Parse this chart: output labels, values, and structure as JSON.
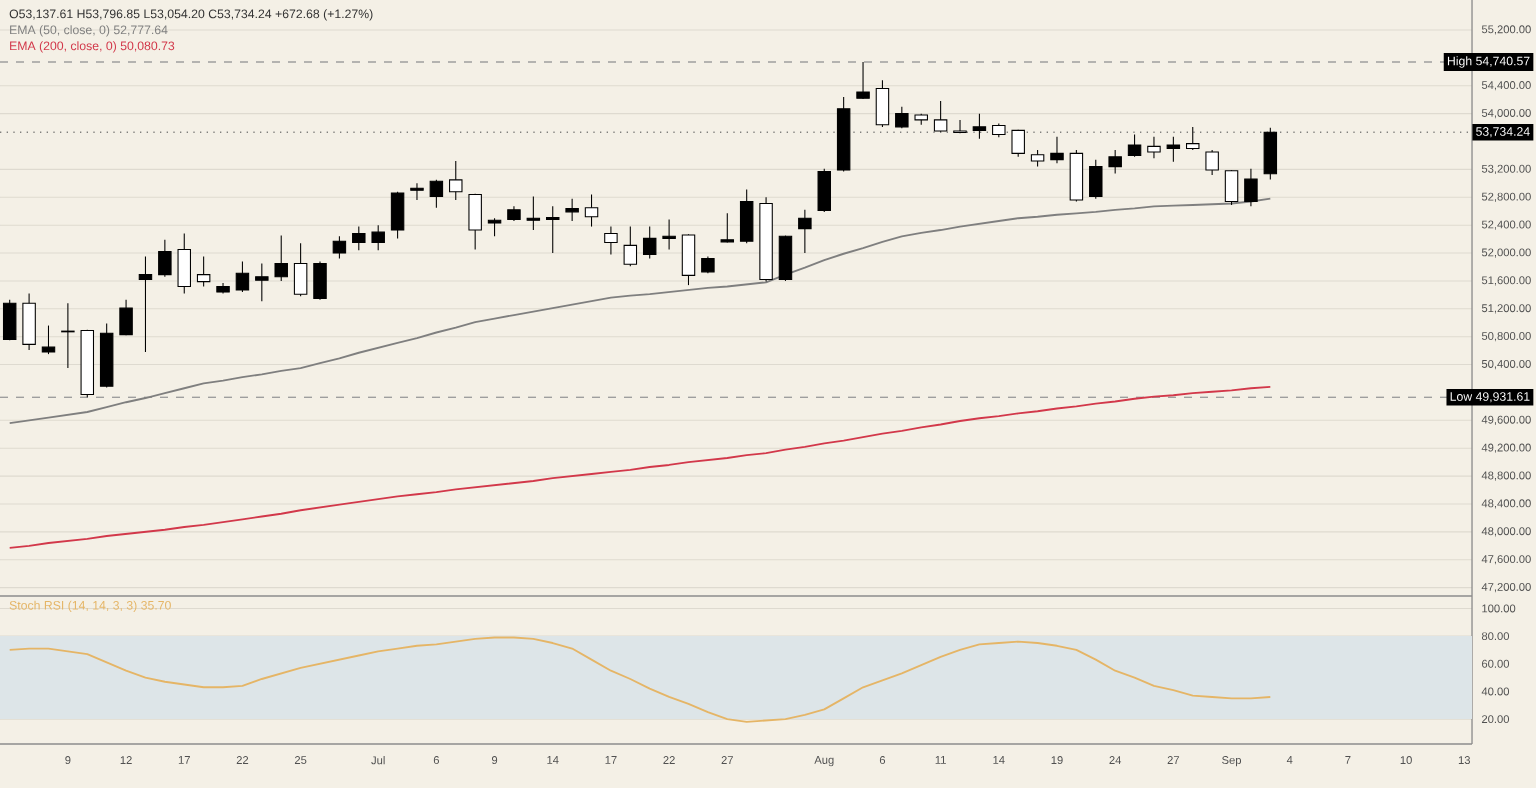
{
  "chart_data": [
    {
      "type": "candlestick",
      "title": "O53,137.61 H53,796.85 L53,054.20 C53,734.24 +672.68 (+1.27%)",
      "categories": [
        null,
        null,
        null,
        null,
        null,
        null,
        null,
        null,
        null,
        null,
        null,
        null,
        null,
        null,
        null,
        null,
        null,
        null,
        null,
        null,
        null,
        null,
        null,
        null,
        null,
        null,
        null,
        null,
        null,
        null,
        null,
        null,
        null,
        null,
        null,
        null,
        null,
        null,
        null,
        null,
        null,
        null,
        null,
        null,
        null,
        null,
        null,
        null,
        null,
        null,
        null,
        null,
        null,
        null,
        null,
        null,
        null,
        null,
        null,
        null,
        null,
        null,
        null,
        null,
        null,
        null,
        null,
        null,
        null,
        null,
        null,
        null,
        null,
        null,
        null,
        null
      ],
      "ohlc": [
        [
          50760,
          51330,
          50750,
          51280
        ],
        [
          51280,
          51420,
          50610,
          50690
        ],
        [
          50580,
          50960,
          50550,
          50650
        ],
        [
          50880,
          51280,
          50350,
          50870
        ],
        [
          50890,
          50900,
          49931.61,
          49970
        ],
        [
          50090,
          50990,
          50070,
          50850
        ],
        [
          50830,
          51330,
          50820,
          51210
        ],
        [
          51620,
          51950,
          50580,
          51690
        ],
        [
          51690,
          52190,
          51660,
          52020
        ],
        [
          52050,
          52280,
          51420,
          51520
        ],
        [
          51690,
          51950,
          51520,
          51590
        ],
        [
          51440,
          51570,
          51420,
          51520
        ],
        [
          51470,
          51880,
          51440,
          51710
        ],
        [
          51610,
          51850,
          51310,
          51660
        ],
        [
          51660,
          52250,
          51600,
          51850
        ],
        [
          51850,
          52140,
          51380,
          51410
        ],
        [
          51350,
          51880,
          51330,
          51850
        ],
        [
          52000,
          52240,
          51920,
          52170
        ],
        [
          52150,
          52380,
          52040,
          52280
        ],
        [
          52150,
          52400,
          52040,
          52300
        ],
        [
          52330,
          52880,
          52210,
          52860
        ],
        [
          52900,
          53000,
          52760,
          52930
        ],
        [
          52810,
          53050,
          52650,
          53030
        ],
        [
          53050,
          53320,
          52760,
          52880
        ],
        [
          52840,
          52850,
          52050,
          52330
        ],
        [
          52430,
          52500,
          52240,
          52470
        ],
        [
          52480,
          52670,
          52460,
          52620
        ],
        [
          52470,
          52810,
          52330,
          52500
        ],
        [
          52480,
          52670,
          52000,
          52510
        ],
        [
          52590,
          52780,
          52460,
          52640
        ],
        [
          52650,
          52840,
          52380,
          52520
        ],
        [
          52280,
          52380,
          51980,
          52150
        ],
        [
          52110,
          52380,
          51810,
          51840
        ],
        [
          51980,
          52380,
          51920,
          52210
        ],
        [
          52210,
          52480,
          52050,
          52240
        ],
        [
          52260,
          52270,
          51540,
          51680
        ],
        [
          51730,
          51950,
          51710,
          51920
        ],
        [
          52160,
          52570,
          52150,
          52190
        ],
        [
          52170,
          52910,
          52140,
          52740
        ],
        [
          52710,
          52800,
          51590,
          51620
        ],
        [
          51620,
          52250,
          51600,
          52240
        ],
        [
          52350,
          52620,
          52000,
          52500
        ],
        [
          52610,
          53210,
          52590,
          53170
        ],
        [
          53190,
          54240,
          53170,
          54070
        ],
        [
          54220,
          54740.57,
          54210,
          54310
        ],
        [
          54360,
          54480,
          53810,
          53840
        ],
        [
          53810,
          54100,
          53790,
          54000
        ],
        [
          53980,
          54000,
          53840,
          53910
        ],
        [
          53910,
          54180,
          53740,
          53750
        ],
        [
          53750,
          53910,
          53720,
          53730
        ],
        [
          53760,
          54000,
          53640,
          53810
        ],
        [
          53830,
          53860,
          53660,
          53700
        ],
        [
          53760,
          53770,
          53380,
          53430
        ],
        [
          53410,
          53480,
          53240,
          53320
        ],
        [
          53340,
          53670,
          53290,
          53430
        ],
        [
          53430,
          53480,
          52740,
          52760
        ],
        [
          52810,
          53340,
          52780,
          53240
        ],
        [
          53240,
          53480,
          53140,
          53380
        ],
        [
          53400,
          53700,
          53380,
          53550
        ],
        [
          53530,
          53670,
          53360,
          53450
        ],
        [
          53500,
          53670,
          53310,
          53550
        ],
        [
          53570,
          53810,
          53480,
          53500
        ],
        [
          53450,
          53480,
          53120,
          53190
        ],
        [
          53180,
          53190,
          52690,
          52740
        ],
        [
          52740,
          53210,
          52670,
          53061.56
        ],
        [
          53137.61,
          53796.85,
          53054.2,
          53734.24
        ],
        null,
        null,
        null,
        null,
        null,
        null,
        null,
        null,
        null,
        null
      ],
      "series": [
        {
          "name": "EMA (50, close, 0) 52,777.64",
          "type": "line",
          "color": "#7f7f7f",
          "values": [
            49560,
            49600,
            49640,
            49680,
            49720,
            49790,
            49860,
            49920,
            49990,
            50060,
            50130,
            50170,
            50220,
            50260,
            50310,
            50350,
            50420,
            50490,
            50570,
            50640,
            50710,
            50780,
            50860,
            50930,
            51010,
            51060,
            51110,
            51160,
            51210,
            51260,
            51310,
            51360,
            51390,
            51410,
            51440,
            51470,
            51500,
            51520,
            51550,
            51580,
            51690,
            51790,
            51900,
            51990,
            52070,
            52160,
            52240,
            52290,
            52330,
            52380,
            52420,
            52460,
            52500,
            52520,
            52550,
            52570,
            52590,
            52620,
            52640,
            52670,
            52680,
            52690,
            52700,
            52710,
            52740,
            52780,
            null,
            null,
            null,
            null,
            null,
            null,
            null,
            null,
            null,
            null
          ]
        },
        {
          "name": "EMA (200, close, 0) 50,080.73",
          "type": "line",
          "color": "#d2384a",
          "values": [
            47770,
            47800,
            47840,
            47870,
            47900,
            47940,
            47970,
            48000,
            48030,
            48070,
            48100,
            48140,
            48180,
            48220,
            48260,
            48310,
            48350,
            48390,
            48430,
            48470,
            48510,
            48540,
            48570,
            48610,
            48640,
            48670,
            48700,
            48730,
            48770,
            48800,
            48830,
            48860,
            48890,
            48930,
            48960,
            49000,
            49030,
            49060,
            49100,
            49130,
            49180,
            49220,
            49270,
            49310,
            49360,
            49410,
            49450,
            49500,
            49540,
            49590,
            49630,
            49660,
            49700,
            49730,
            49770,
            49800,
            49840,
            49870,
            49910,
            49940,
            49960,
            49990,
            50010,
            50030,
            50060,
            50080,
            null,
            null,
            null,
            null,
            null,
            null,
            null,
            null,
            null,
            null
          ]
        }
      ],
      "ylim": [
        47080,
        55630
      ],
      "yticks": [
        {
          "value": 55200,
          "label": "55,200.00"
        },
        {
          "value": 54400,
          "label": "54,400.00"
        },
        {
          "value": 54000,
          "label": "54,000.00"
        },
        {
          "value": 53200,
          "label": "53,200.00"
        },
        {
          "value": 52800,
          "label": "52,800.00"
        },
        {
          "value": 52400,
          "label": "52,400.00"
        },
        {
          "value": 52000,
          "label": "52,000.00"
        },
        {
          "value": 51600,
          "label": "51,600.00"
        },
        {
          "value": 51200,
          "label": "51,200.00"
        },
        {
          "value": 50800,
          "label": "50,800.00"
        },
        {
          "value": 50400,
          "label": "50,400.00"
        },
        {
          "value": 49600,
          "label": "49,600.00"
        },
        {
          "value": 49200,
          "label": "49,200.00"
        },
        {
          "value": 48800,
          "label": "48,800.00"
        },
        {
          "value": 48400,
          "label": "48,400.00"
        },
        {
          "value": 48000,
          "label": "48,000.00"
        },
        {
          "value": 47600,
          "label": "47,600.00"
        },
        {
          "value": 47200,
          "label": "47,200.00"
        }
      ],
      "ref_lines": [
        {
          "axis": "y",
          "value": 54740.57,
          "label": "High 54,740.57",
          "line_style": "dashed",
          "color": "#9e9e9e"
        },
        {
          "axis": "y",
          "value": 53734.24,
          "label": "53,734.24",
          "line_style": "dotted",
          "color": "#5a5a5a"
        },
        {
          "axis": "y",
          "value": 49931.61,
          "label": "Low 49,931.61",
          "line_style": "dashed",
          "color": "#9e9e9e"
        }
      ],
      "tick_labels": "y",
      "grid": "y",
      "legend": "top left"
    },
    {
      "type": "line",
      "categories": [
        null,
        null,
        null,
        "9",
        null,
        null,
        "12",
        null,
        null,
        "17",
        null,
        null,
        "22",
        null,
        null,
        "25",
        null,
        null,
        null,
        "Jul",
        null,
        null,
        "6",
        null,
        null,
        "9",
        null,
        null,
        "14",
        null,
        null,
        "17",
        null,
        null,
        "22",
        null,
        null,
        "27",
        null,
        null,
        null,
        null,
        "Aug",
        null,
        null,
        "6",
        null,
        null,
        "11",
        null,
        null,
        "14",
        null,
        null,
        "19",
        null,
        null,
        "24",
        null,
        null,
        "27",
        null,
        null,
        "Sep",
        null,
        null,
        "4",
        null,
        null,
        "7",
        null,
        null,
        "10",
        null,
        null,
        "13"
      ],
      "series": [
        {
          "name": "Stoch RSI (14, 14, 3, 3) 35.70",
          "color": "#e5b566",
          "values": [
            70,
            71,
            71,
            69,
            67,
            61,
            55,
            50,
            47,
            45,
            43,
            43,
            44,
            49,
            53,
            57,
            60,
            63,
            66,
            69,
            71,
            73,
            74,
            76,
            78,
            79,
            79,
            78,
            75,
            71,
            63,
            55,
            49,
            42,
            36,
            31,
            25,
            20,
            18,
            19,
            20,
            23,
            27,
            35,
            43,
            48,
            53,
            59,
            65,
            70,
            74,
            75,
            76,
            75,
            73,
            70,
            63,
            55,
            50,
            44,
            41,
            37,
            36,
            35,
            35,
            36,
            null,
            null,
            null,
            null,
            null,
            null,
            null,
            null,
            null,
            null
          ]
        }
      ],
      "ylim": [
        2,
        109
      ],
      "yticks": [
        {
          "value": 100,
          "label": "100.00"
        },
        {
          "value": 80,
          "label": "80.00"
        },
        {
          "value": 60,
          "label": "60.00"
        },
        {
          "value": 40,
          "label": "40.00"
        },
        {
          "value": 20,
          "label": "20.00"
        }
      ],
      "bands": [
        {
          "axis": "y",
          "from": 20,
          "to": 80,
          "color": "#dde5e8"
        }
      ],
      "grid": "y",
      "legend": "top left"
    }
  ]
}
